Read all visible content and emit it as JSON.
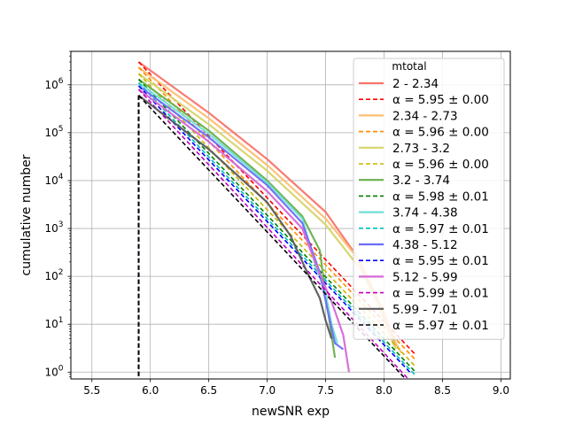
{
  "chart_data": {
    "type": "line",
    "title": "",
    "xlabel": "newSNR exp",
    "ylabel": "cumulative number",
    "xlim": [
      5.32,
      9.08
    ],
    "ylim": [
      0.72,
      5000000
    ],
    "yscale": "log",
    "grid": true,
    "x_ticks": [
      "5.5",
      "6.0",
      "6.5",
      "7.0",
      "7.5",
      "8.0",
      "8.5",
      "9.0"
    ],
    "x_tick_values": [
      5.5,
      6.0,
      6.5,
      7.0,
      7.5,
      8.0,
      8.5,
      9.0
    ],
    "y_ticks": [
      "10^0",
      "10^1",
      "10^2",
      "10^3",
      "10^4",
      "10^5",
      "10^6"
    ],
    "y_tick_exponents": [
      0,
      1,
      2,
      3,
      4,
      5,
      6
    ],
    "threshold_x": 5.9,
    "legend": {
      "title": "mtotal",
      "placement": "upper right"
    },
    "series": [
      {
        "name": "2 - 2.34",
        "kind": "data",
        "color": "#f8746b",
        "points": [
          [
            5.9,
            3000000.0
          ],
          [
            6.5,
            260000.0
          ],
          [
            7.0,
            28000.0
          ],
          [
            7.5,
            2200.0
          ],
          [
            7.75,
            300.0
          ],
          [
            7.95,
            30
          ],
          [
            8.05,
            8
          ],
          [
            8.1,
            3.5
          ]
        ]
      },
      {
        "name": "α = 5.95 ± 0.00",
        "kind": "fit",
        "color": "#ff0000",
        "points": [
          [
            5.9,
            3000000.0
          ],
          [
            8.27,
            2.3
          ]
        ]
      },
      {
        "name": "2.34 - 2.73",
        "kind": "data",
        "color": "#fdbf6f",
        "points": [
          [
            5.9,
            2300000.0
          ],
          [
            6.5,
            200000.0
          ],
          [
            7.0,
            21000.0
          ],
          [
            7.5,
            1600.0
          ],
          [
            7.8,
            200.0
          ],
          [
            8.0,
            18
          ],
          [
            8.1,
            4
          ],
          [
            8.15,
            2.5
          ]
        ]
      },
      {
        "name": "α = 5.96 ± 0.00",
        "kind": "fit",
        "color": "#ff8c00",
        "points": [
          [
            5.9,
            2300000.0
          ],
          [
            8.27,
            1.8
          ]
        ]
      },
      {
        "name": "2.73 - 3.2",
        "kind": "data",
        "color": "#d7d46a",
        "points": [
          [
            5.9,
            1700000.0
          ],
          [
            6.5,
            150000.0
          ],
          [
            7.0,
            16000.0
          ],
          [
            7.5,
            1200.0
          ],
          [
            7.8,
            140.0
          ],
          [
            7.95,
            25
          ],
          [
            8.05,
            6
          ],
          [
            8.1,
            3
          ]
        ]
      },
      {
        "name": "α = 5.96 ± 0.00",
        "kind": "fit",
        "color": "#c8b400",
        "points": [
          [
            5.9,
            1700000.0
          ],
          [
            8.27,
            1.3
          ]
        ]
      },
      {
        "name": "3.2 - 3.74",
        "kind": "data",
        "color": "#6ab04c",
        "points": [
          [
            5.9,
            1300000.0
          ],
          [
            6.5,
            110000.0
          ],
          [
            7.0,
            10000.0
          ],
          [
            7.3,
            1800.0
          ],
          [
            7.45,
            350.0
          ],
          [
            7.5,
            40
          ],
          [
            7.55,
            6
          ],
          [
            7.58,
            2
          ]
        ]
      },
      {
        "name": "α = 5.98 ± 0.01",
        "kind": "fit",
        "color": "#008000",
        "points": [
          [
            5.9,
            1300000.0
          ],
          [
            8.27,
            1.0
          ]
        ]
      },
      {
        "name": "3.74 - 4.38",
        "kind": "data",
        "color": "#6fe0d6",
        "points": [
          [
            5.9,
            1100000.0
          ],
          [
            6.5,
            95000.0
          ],
          [
            7.0,
            9000.0
          ],
          [
            7.3,
            1600.0
          ],
          [
            7.42,
            150.0
          ],
          [
            7.5,
            45
          ],
          [
            7.55,
            10
          ],
          [
            7.6,
            4
          ]
        ]
      },
      {
        "name": "α = 5.97 ± 0.01",
        "kind": "fit",
        "color": "#00bfbf",
        "points": [
          [
            5.9,
            1100000.0
          ],
          [
            8.27,
            0.85
          ]
        ]
      },
      {
        "name": "4.38 - 5.12",
        "kind": "data",
        "color": "#6a6ef8",
        "points": [
          [
            5.9,
            950000.0
          ],
          [
            6.5,
            80000.0
          ],
          [
            7.0,
            8000.0
          ],
          [
            7.3,
            1300.0
          ],
          [
            7.45,
            120.0
          ],
          [
            7.52,
            18
          ],
          [
            7.58,
            4
          ],
          [
            7.65,
            3
          ]
        ]
      },
      {
        "name": "α = 5.95 ± 0.01",
        "kind": "fit",
        "color": "#0000ff",
        "points": [
          [
            5.9,
            950000.0
          ],
          [
            8.22,
            1.0
          ]
        ]
      },
      {
        "name": "5.12 - 5.99",
        "kind": "data",
        "color": "#d668d6",
        "points": [
          [
            5.9,
            800000.0
          ],
          [
            6.5,
            65000.0
          ],
          [
            7.0,
            6000.0
          ],
          [
            7.3,
            1000.0
          ],
          [
            7.45,
            110.0
          ],
          [
            7.55,
            30
          ],
          [
            7.65,
            6
          ],
          [
            7.7,
            1.0
          ]
        ]
      },
      {
        "name": "α = 5.99 ± 0.01",
        "kind": "fit",
        "color": "#bf00bf",
        "points": [
          [
            5.9,
            800000.0
          ],
          [
            8.2,
            0.75
          ]
        ]
      },
      {
        "name": "5.99 - 7.01",
        "kind": "data",
        "color": "#5a5a5a",
        "points": [
          [
            5.9,
            600000.0
          ],
          [
            6.5,
            45000.0
          ],
          [
            7.0,
            3500.0
          ],
          [
            7.2,
            700.0
          ],
          [
            7.35,
            110.0
          ],
          [
            7.45,
            35
          ],
          [
            7.5,
            12
          ],
          [
            7.55,
            5
          ]
        ]
      },
      {
        "name": "α = 5.97 ± 0.01",
        "kind": "fit",
        "color": "#000000",
        "points": [
          [
            5.9,
            600000.0
          ],
          [
            8.17,
            0.78
          ]
        ]
      }
    ]
  }
}
